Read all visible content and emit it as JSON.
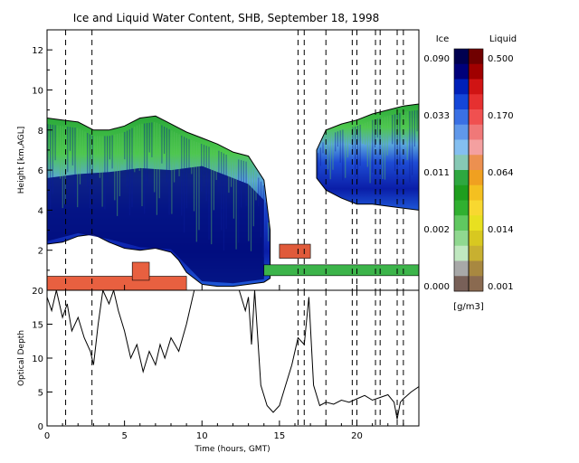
{
  "chart_data": [
    {
      "type": "heatmap",
      "title": "Ice and Liquid Water Content, SHB, September 18, 1998",
      "xlabel": "Time (hours, GMT)",
      "ylabel": "Height [km,AGL]",
      "xlim": [
        0,
        24
      ],
      "ylim": [
        0,
        13
      ],
      "xticks": [
        "0",
        "5",
        "10",
        "15",
        "20"
      ],
      "yticks": [
        "2",
        "4",
        "6",
        "8",
        "10",
        "12"
      ],
      "dashed_lines_hours": [
        1.2,
        2.9,
        16.2,
        16.6,
        18.0,
        19.7,
        20.0,
        21.2,
        21.5,
        22.6,
        23.0
      ],
      "ice_region": {
        "color_scale": "green-blue",
        "top_km": [
          [
            0,
            8.6
          ],
          [
            1,
            8.5
          ],
          [
            2,
            8.4
          ],
          [
            3,
            8.0
          ],
          [
            4,
            8.0
          ],
          [
            5,
            8.2
          ],
          [
            6,
            8.6
          ],
          [
            7,
            8.7
          ],
          [
            8,
            8.3
          ],
          [
            9,
            7.9
          ],
          [
            10,
            7.6
          ],
          [
            11,
            7.3
          ],
          [
            12,
            6.9
          ],
          [
            13,
            6.7
          ],
          [
            14,
            5.5
          ],
          [
            14.4,
            3.0
          ],
          [
            17.4,
            7.0
          ],
          [
            18,
            8.0
          ],
          [
            19,
            8.3
          ],
          [
            20,
            8.5
          ],
          [
            21,
            8.8
          ],
          [
            22,
            9.0
          ],
          [
            23,
            9.2
          ],
          [
            24,
            9.3
          ]
        ],
        "base_km": [
          [
            0,
            2.3
          ],
          [
            1,
            2.4
          ],
          [
            2,
            2.7
          ],
          [
            3,
            2.8
          ],
          [
            4,
            2.4
          ],
          [
            5,
            2.1
          ],
          [
            6,
            2.0
          ],
          [
            7,
            2.1
          ],
          [
            8,
            1.9
          ],
          [
            8.5,
            1.5
          ],
          [
            9,
            0.9
          ],
          [
            10,
            0.3
          ],
          [
            11,
            0.2
          ],
          [
            12,
            0.2
          ],
          [
            13,
            0.3
          ],
          [
            14,
            0.4
          ],
          [
            14.4,
            0.6
          ],
          [
            17.4,
            5.6
          ],
          [
            18,
            5.0
          ],
          [
            19,
            4.6
          ],
          [
            20,
            4.3
          ],
          [
            21,
            4.3
          ],
          [
            22,
            4.2
          ],
          [
            23,
            4.1
          ],
          [
            24,
            4.0
          ]
        ],
        "dense_core_top_km": [
          [
            0,
            5.6
          ],
          [
            2,
            5.8
          ],
          [
            4,
            5.9
          ],
          [
            6,
            6.1
          ],
          [
            8,
            6.0
          ],
          [
            10,
            6.2
          ],
          [
            12,
            5.6
          ],
          [
            13,
            5.3
          ],
          [
            14,
            4.5
          ]
        ],
        "low_cloud_layer_km": [
          [
            14,
            1.0
          ],
          [
            24,
            1.0
          ]
        ]
      },
      "liquid_region": {
        "color_scale": "red",
        "layers": [
          {
            "x_range": [
              0,
              9.0
            ],
            "y_range": [
              0.0,
              0.7
            ]
          },
          {
            "x_range": [
              5.5,
              6.6
            ],
            "y_range": [
              0.5,
              1.4
            ]
          },
          {
            "x_range": [
              15.0,
              17.0
            ],
            "y_range": [
              1.6,
              2.3
            ]
          }
        ]
      },
      "colorbar": {
        "ice_label": "Ice",
        "liquid_label": "Liquid",
        "unit": "[g/m3]",
        "ice_ticks": [
          "0.090",
          "0.033",
          "0.011",
          "0.002",
          "0.000"
        ],
        "liquid_ticks": [
          "0.500",
          "0.170",
          "0.064",
          "0.014",
          "0.001"
        ],
        "ice_colors": [
          "#000050",
          "#00007a",
          "#0020b8",
          "#1446d8",
          "#3a70e4",
          "#6098ea",
          "#84bff0",
          "#86c8b4",
          "#2ea840",
          "#1e9e1e",
          "#30b030",
          "#60c860",
          "#90d890",
          "#c0e8c0",
          "#a8a8a8",
          "#786058"
        ],
        "liquid_colors": [
          "#700000",
          "#a00000",
          "#d01414",
          "#e63030",
          "#f05050",
          "#f07878",
          "#f4a0a0",
          "#ec9050",
          "#f0a020",
          "#f4c020",
          "#f8d830",
          "#e8e020",
          "#d8c820",
          "#c8b030",
          "#a88840",
          "#8a6a50"
        ]
      }
    },
    {
      "type": "line",
      "xlabel": "Time (hours, GMT)",
      "ylabel": "Optical Depth",
      "xlim": [
        0,
        24
      ],
      "ylim": [
        0,
        20
      ],
      "xticks": [
        "0",
        "5",
        "10",
        "15",
        "20"
      ],
      "yticks": [
        "0",
        "5",
        "10",
        "15",
        "20"
      ],
      "x": [
        0.0,
        0.3,
        0.6,
        1.0,
        1.3,
        1.6,
        2.0,
        2.4,
        2.8,
        3.0,
        3.3,
        3.6,
        4.0,
        4.3,
        4.6,
        5.0,
        5.4,
        5.8,
        6.2,
        6.6,
        7.0,
        7.3,
        7.6,
        8.0,
        8.5,
        9.0,
        9.5,
        10.0,
        10.5,
        11.0,
        11.5,
        12.0,
        12.4,
        12.8,
        13.0,
        13.2,
        13.4,
        13.8,
        14.2,
        14.6,
        15.0,
        15.4,
        15.8,
        16.2,
        16.6,
        16.9,
        17.2,
        17.6,
        18.0,
        18.5,
        19.0,
        19.5,
        20.0,
        20.5,
        21.0,
        21.5,
        22.0,
        22.4,
        22.6,
        22.8,
        23.0,
        23.5,
        24.0
      ],
      "y": [
        19,
        17,
        20,
        16,
        18,
        14,
        16,
        13,
        11,
        9,
        15,
        20,
        18,
        20,
        17,
        14,
        10,
        12,
        8,
        11,
        9,
        12,
        10,
        13,
        11,
        15,
        20,
        20,
        20,
        20,
        20,
        20,
        20,
        17,
        19,
        12,
        20,
        6,
        3,
        2,
        3,
        6,
        9,
        13,
        12,
        19,
        6,
        3,
        3.5,
        3.2,
        3.8,
        3.5,
        4.0,
        4.5,
        3.8,
        4.2,
        4.6,
        3.5,
        1.0,
        3.5,
        4.0,
        5.0,
        5.8
      ]
    }
  ]
}
